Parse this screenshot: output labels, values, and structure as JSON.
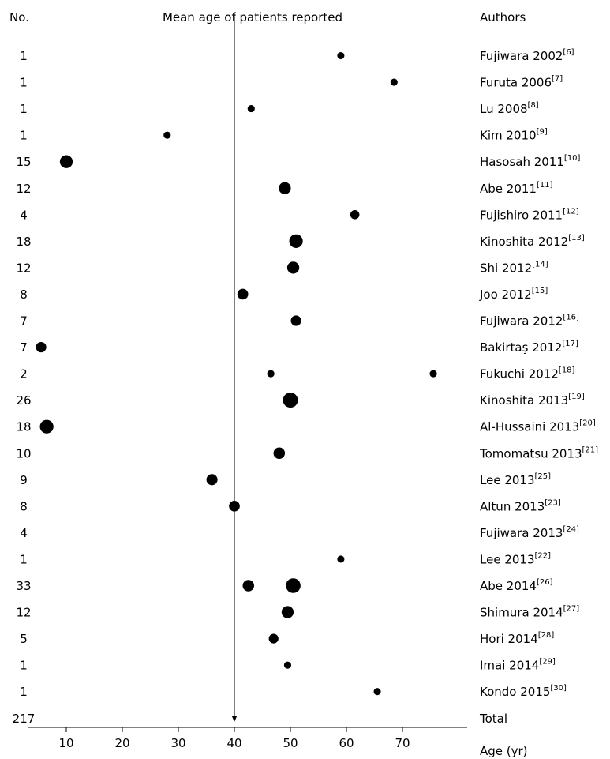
{
  "chart_data": {
    "type": "scatter",
    "title": "Mean age of patients reported",
    "no_header": "No.",
    "authors_header": "Authors",
    "xlabel": "Age (yr)",
    "xlim": [
      0,
      82
    ],
    "xticks": [
      10,
      20,
      30,
      40,
      50,
      60,
      70
    ],
    "reference_x": 40,
    "rows": [
      {
        "n": "1",
        "author": "Fujiwara 2002",
        "ref": "[6]",
        "points": [
          {
            "age": 59,
            "n": 1
          }
        ]
      },
      {
        "n": "1",
        "author": "Furuta 2006",
        "ref": "[7]",
        "points": [
          {
            "age": 68.5,
            "n": 1
          }
        ]
      },
      {
        "n": "1",
        "author": "Lu 2008",
        "ref": "[8]",
        "points": [
          {
            "age": 43,
            "n": 1
          }
        ]
      },
      {
        "n": "1",
        "author": "Kim 2010",
        "ref": "[9]",
        "points": [
          {
            "age": 28,
            "n": 1
          }
        ]
      },
      {
        "n": "15",
        "author": "Hasosah 2011",
        "ref": "[10]",
        "points": [
          {
            "age": 10,
            "n": 15
          }
        ]
      },
      {
        "n": "12",
        "author": "Abe 2011",
        "ref": "[11]",
        "points": [
          {
            "age": 49,
            "n": 12
          }
        ]
      },
      {
        "n": "4",
        "author": "Fujishiro 2011",
        "ref": "[12]",
        "points": [
          {
            "age": 61.5,
            "n": 4
          }
        ]
      },
      {
        "n": "18",
        "author": "Kinoshita 2012",
        "ref": "[13]",
        "points": [
          {
            "age": 51,
            "n": 18
          }
        ]
      },
      {
        "n": "12",
        "author": "Shi 2012",
        "ref": "[14]",
        "points": [
          {
            "age": 50.5,
            "n": 12
          }
        ]
      },
      {
        "n": "8",
        "author": "Joo 2012",
        "ref": "[15]",
        "points": [
          {
            "age": 41.5,
            "n": 8
          }
        ]
      },
      {
        "n": "7",
        "author": "Fujiwara 2012",
        "ref": "[16]",
        "points": [
          {
            "age": 51,
            "n": 7
          }
        ]
      },
      {
        "n": "7",
        "author": "Bakirtaş 2012",
        "ref": "[17]",
        "points": [
          {
            "age": 5.5,
            "n": 7
          }
        ]
      },
      {
        "n": "2",
        "author": "Fukuchi 2012",
        "ref": "[18]",
        "points": [
          {
            "age": 46.5,
            "n": 1
          },
          {
            "age": 75.5,
            "n": 1
          }
        ]
      },
      {
        "n": "26",
        "author": "Kinoshita 2013",
        "ref": "[19]",
        "points": [
          {
            "age": 50,
            "n": 26
          }
        ]
      },
      {
        "n": "18",
        "author": "Al-Hussaini 2013",
        "ref": "[20]",
        "points": [
          {
            "age": 6.5,
            "n": 18
          }
        ]
      },
      {
        "n": "10",
        "author": "Tomomatsu 2013",
        "ref": "[21]",
        "points": [
          {
            "age": 48,
            "n": 10
          }
        ]
      },
      {
        "n": "9",
        "author": "Lee 2013",
        "ref": "[25]",
        "points": [
          {
            "age": 36,
            "n": 9
          }
        ]
      },
      {
        "n": "8",
        "author": "Altun 2013",
        "ref": "[23]",
        "points": [
          {
            "age": 40,
            "n": 8
          }
        ]
      },
      {
        "n": "4",
        "author": "Fujiwara 2013",
        "ref": "[24]",
        "points": []
      },
      {
        "n": "1",
        "author": "Lee 2013",
        "ref": "[22]",
        "points": [
          {
            "age": 59,
            "n": 1
          }
        ]
      },
      {
        "n": "33",
        "author": "Abe 2014",
        "ref": "[26]",
        "points": [
          {
            "age": 42.5,
            "n": 10
          },
          {
            "age": 50.5,
            "n": 23
          }
        ]
      },
      {
        "n": "12",
        "author": "Shimura 2014",
        "ref": "[27]",
        "points": [
          {
            "age": 49.5,
            "n": 12
          }
        ]
      },
      {
        "n": "5",
        "author": "Hori 2014",
        "ref": "[28]",
        "points": [
          {
            "age": 47,
            "n": 5
          }
        ]
      },
      {
        "n": "1",
        "author": "Imai 2014",
        "ref": "[29]",
        "points": [
          {
            "age": 49.5,
            "n": 1
          }
        ]
      },
      {
        "n": "1",
        "author": "Kondo 2015",
        "ref": "[30]",
        "points": [
          {
            "age": 65.5,
            "n": 1
          }
        ]
      },
      {
        "n": "217",
        "author": "Total",
        "ref": "",
        "points": []
      }
    ]
  }
}
